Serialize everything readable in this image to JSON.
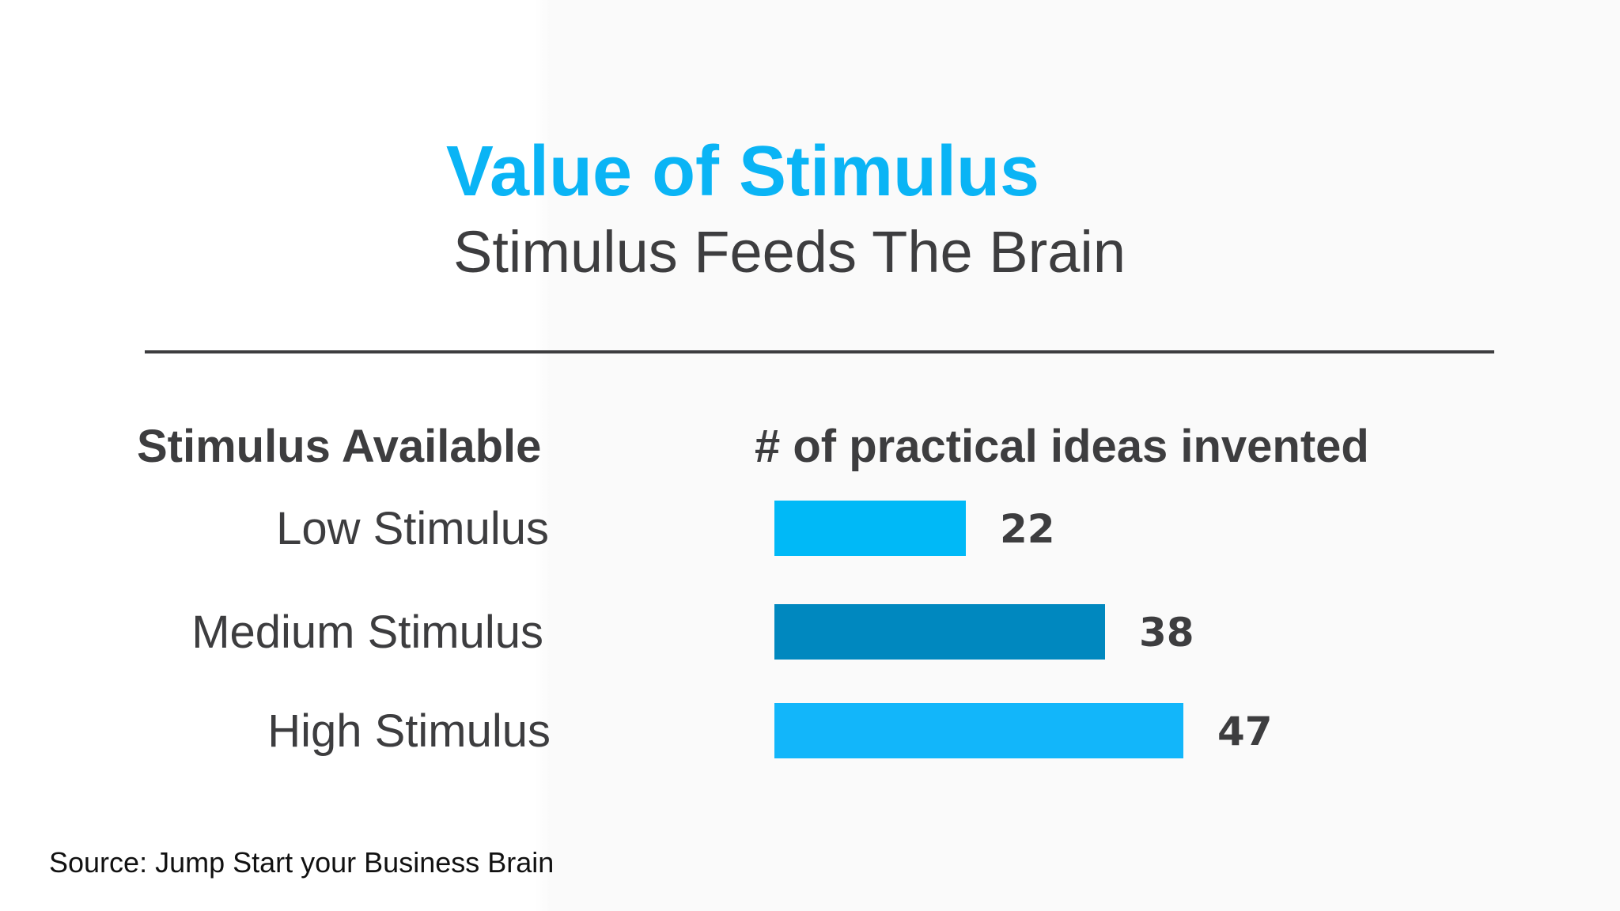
{
  "slide": {
    "title": "Value of Stimulus",
    "subtitle": "Stimulus Feeds The Brain",
    "source": "Source: Jump Start your Business Brain"
  },
  "colors": {
    "title": "#0ab4f5",
    "text": "#3d3d3f",
    "bar_low": "#00b9f7",
    "bar_medium": "#0088bf",
    "bar_high": "#12b6fa"
  },
  "chart_data": {
    "type": "bar",
    "orientation": "horizontal",
    "category_header": "Stimulus Available",
    "value_header": "# of practical ideas invented",
    "categories": [
      "Low Stimulus",
      "Medium Stimulus",
      "High Stimulus"
    ],
    "values": [
      22,
      38,
      47
    ],
    "value_labels": [
      "22",
      "38",
      "47"
    ],
    "bar_colors": [
      "#00b9f7",
      "#0088bf",
      "#12b6fa"
    ],
    "xlim": [
      0,
      47
    ],
    "grid": false,
    "legend": "none"
  }
}
